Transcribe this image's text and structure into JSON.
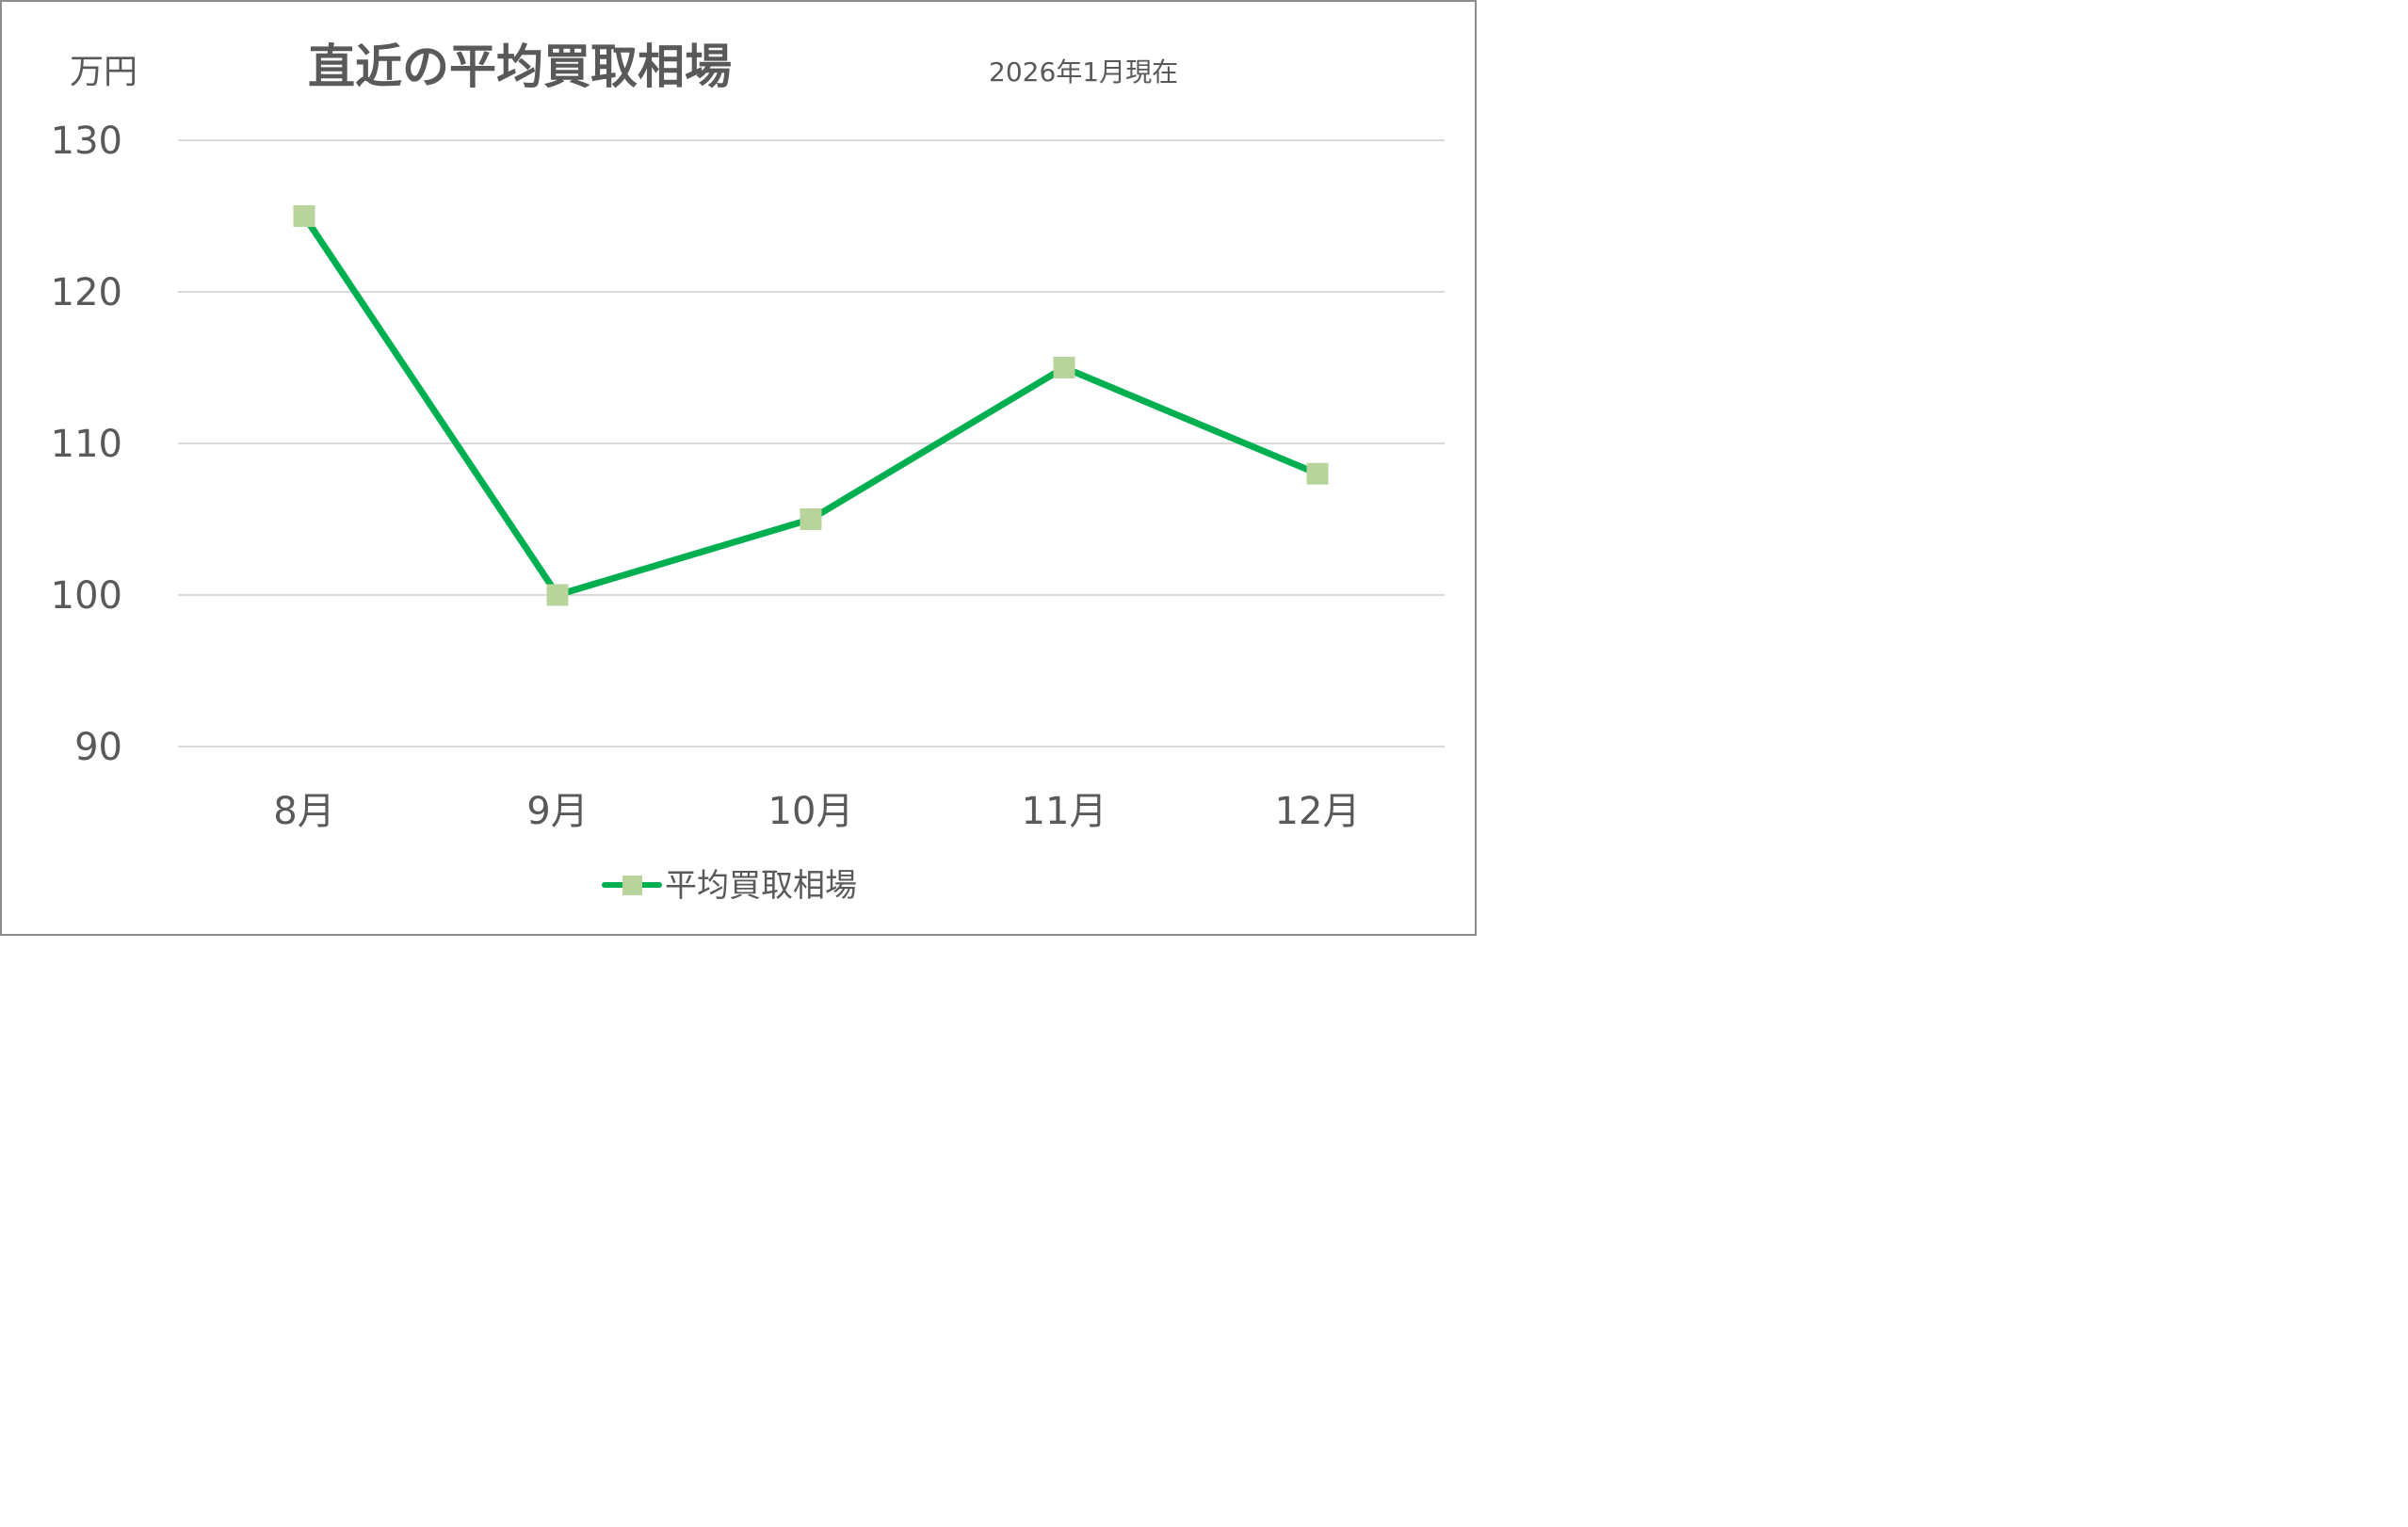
{
  "chart_data": {
    "type": "line",
    "title": "直近の平均買取相場",
    "subtitle": "2026年1月現在",
    "y_unit": "万円",
    "categories": [
      "8月",
      "9月",
      "10月",
      "11月",
      "12月"
    ],
    "series": [
      {
        "name": "平均買取相場",
        "values": [
          125,
          100,
          105,
          115,
          108
        ]
      }
    ],
    "ylim": [
      90,
      130
    ],
    "yticks": [
      90,
      100,
      110,
      120,
      130
    ],
    "grid": true,
    "legend_position": "bottom"
  },
  "colors": {
    "line": "#00b050",
    "marker": "#b8d39b",
    "grid": "#d9d9d9",
    "text": "#595959",
    "border": "#8c8c8c"
  }
}
